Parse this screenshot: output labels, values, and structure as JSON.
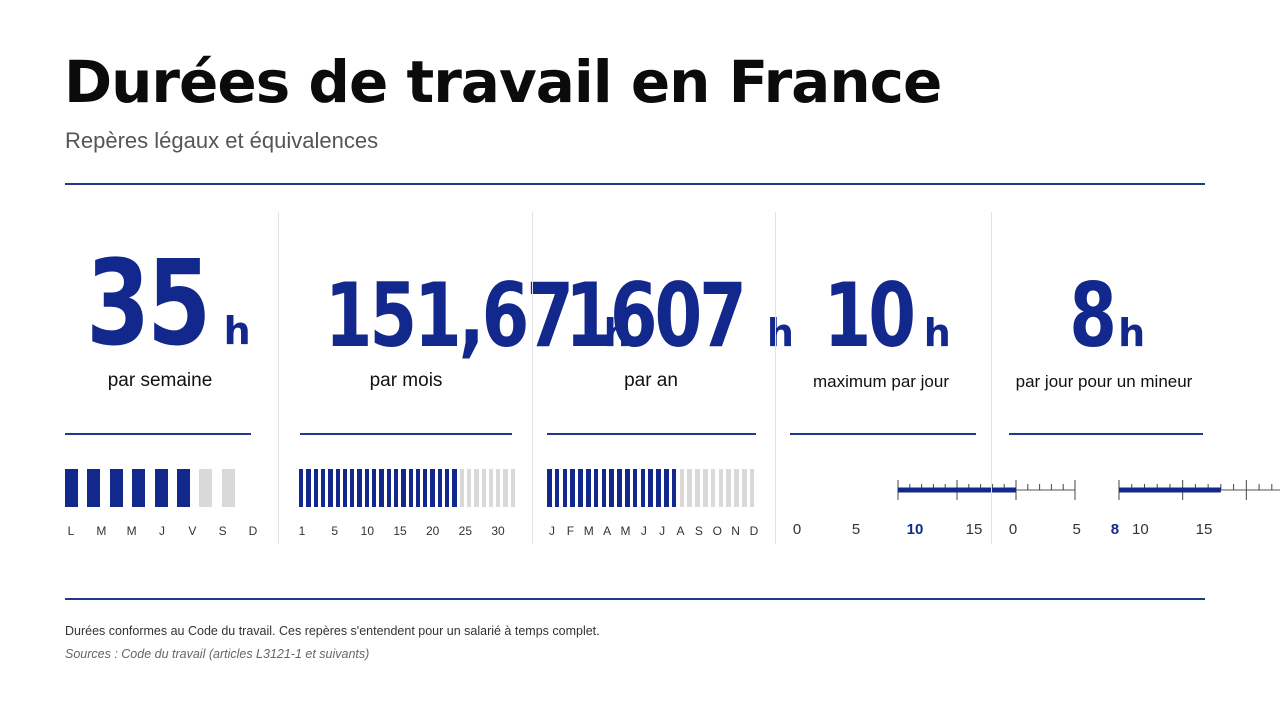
{
  "title": "Durées de travail en France",
  "subtitle": "Repères légaux et équivalences",
  "colors": {
    "accent": "#13288d",
    "inactive": "#d9d9d9",
    "rule": "#1f3a8a"
  },
  "stats": [
    {
      "value": "35",
      "unit": "h",
      "label": "par semaine",
      "indicator": {
        "kind": "segments",
        "filled": 6,
        "total": 8,
        "tick_labels": [
          "L",
          "M",
          "M",
          "J",
          "V",
          "S",
          "D"
        ]
      }
    },
    {
      "value": "151,67",
      "unit": "h",
      "label": "par mois",
      "indicator": {
        "kind": "segments",
        "filled": 22,
        "total": 30,
        "tick_labels": [
          "1",
          "5",
          "10",
          "15",
          "20",
          "25",
          "30"
        ]
      }
    },
    {
      "value": "1607",
      "unit": "h",
      "label": "par an",
      "indicator": {
        "kind": "segments",
        "filled": 17,
        "total": 27,
        "tick_labels": [
          "J",
          "F",
          "M",
          "A",
          "M",
          "J",
          "J",
          "A",
          "S",
          "O",
          "N",
          "D"
        ]
      }
    },
    {
      "value": "10",
      "unit": "h",
      "label": "maximum par jour",
      "indicator": {
        "kind": "scale",
        "min": 0,
        "max": 15,
        "marker": 10,
        "scale_labels": [
          "0",
          "5",
          "10",
          "15"
        ]
      }
    },
    {
      "value": "8",
      "unit": "h",
      "label": "par jour pour un mineur",
      "indicator": {
        "kind": "scale",
        "min": 0,
        "max": 15,
        "marker": 8,
        "scale_labels": [
          "0",
          "5",
          "8",
          "10",
          "15"
        ]
      }
    }
  ],
  "footer": {
    "note": "Durées conformes au Code du travail. Ces repères s'entendent pour un salarié à temps complet.",
    "source": "Sources : Code du travail (articles L3121-1 et suivants)"
  }
}
